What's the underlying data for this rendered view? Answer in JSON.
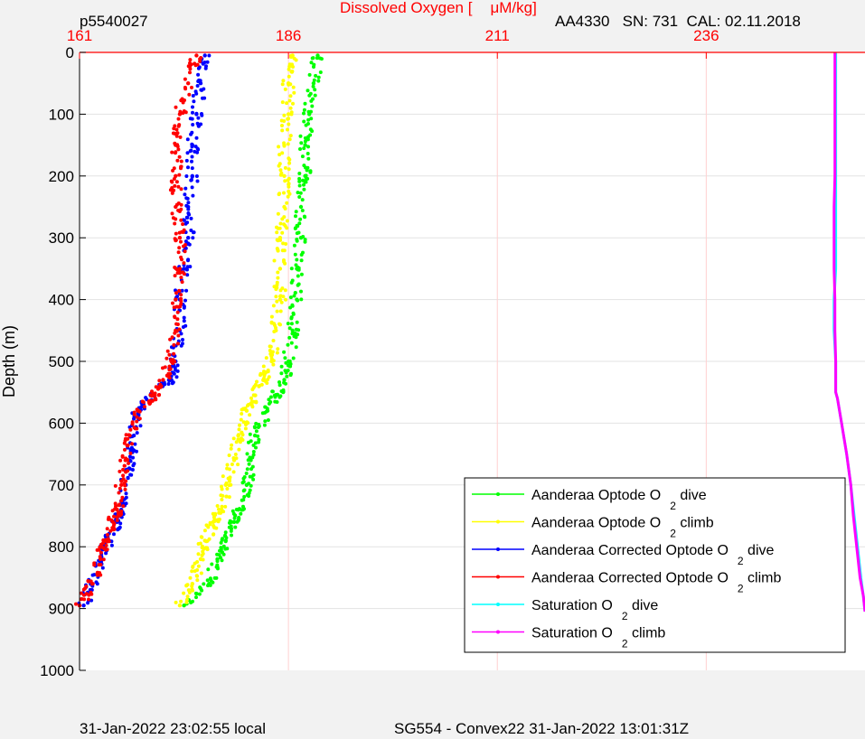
{
  "header": {
    "profile_id": "p5540027",
    "title_prefix": "Dissolved Oxygen [",
    "title_units": "μM/kg]",
    "sensor_info": "AA4330   SN: 731  CAL: 02.11.2018"
  },
  "footer": {
    "local_time": "31-Jan-2022 23:02:55 local",
    "mission": "SG554 - Convex22 31-Jan-2022 13:01:31Z"
  },
  "colors": {
    "background": "#f2f2f2",
    "plot_area": "#ffffff",
    "top_axis": "#ff0000",
    "grid": "#e3e3e3",
    "x_grid": "#ffd0d0"
  },
  "chart_data": {
    "type": "scatter",
    "title": "Dissolved Oxygen [μM/kg]",
    "ylabel": "Depth (m)",
    "xlabel": "",
    "x_axis_position": "top",
    "x_ticks": [
      161,
      186,
      211,
      236
    ],
    "xlim": [
      161,
      255
    ],
    "y_ticks": [
      0,
      100,
      200,
      300,
      400,
      500,
      600,
      700,
      800,
      900,
      1000
    ],
    "ylim": [
      0,
      1000
    ],
    "y_reversed": true,
    "grid": true,
    "legend_position": "bottom-right",
    "series": [
      {
        "name": "Aanderaa Optode O2 dive",
        "color": "#00ff00",
        "marker": "dots",
        "x": [
          189.5,
          189.0,
          188.5,
          188.0,
          188.0,
          187.5,
          187.5,
          187.0,
          187.0,
          186.5,
          186.0,
          185.5,
          184.5,
          183.5,
          182.0,
          181.5,
          181.0,
          180.0,
          179.5,
          178.5,
          177.5,
          176.5,
          173.5
        ],
        "y": [
          5,
          50,
          100,
          150,
          200,
          250,
          300,
          350,
          400,
          450,
          500,
          530,
          555,
          580,
          620,
          660,
          700,
          740,
          760,
          790,
          820,
          860,
          895
        ]
      },
      {
        "name": "Aanderaa Optode O2 climb",
        "color": "#ffff00",
        "marker": "dots",
        "x": [
          186.5,
          186.0,
          186.0,
          185.5,
          185.5,
          185.5,
          185.0,
          185.0,
          185.0,
          184.5,
          184.0,
          183.0,
          182.0,
          181.0,
          180.0,
          179.5,
          178.5,
          178.0,
          177.0,
          176.0,
          175.5,
          174.5,
          173.0
        ],
        "y": [
          5,
          50,
          100,
          150,
          200,
          250,
          300,
          350,
          400,
          450,
          500,
          530,
          555,
          580,
          620,
          660,
          700,
          740,
          760,
          790,
          820,
          860,
          895
        ]
      },
      {
        "name": "Aanderaa Corrected Optode O2 dive",
        "color": "#0000ff",
        "marker": "dots",
        "x": [
          176.0,
          175.5,
          175.0,
          174.5,
          174.5,
          174.0,
          174.0,
          173.5,
          173.0,
          173.0,
          172.5,
          172.0,
          169.5,
          168.0,
          167.5,
          167.0,
          166.5,
          166.0,
          165.5,
          164.5,
          163.5,
          162.5,
          161.5
        ],
        "y": [
          5,
          50,
          100,
          150,
          200,
          250,
          300,
          350,
          400,
          450,
          500,
          530,
          555,
          580,
          620,
          660,
          700,
          740,
          760,
          790,
          820,
          860,
          895
        ]
      },
      {
        "name": "Aanderaa Corrected Optode O2 climb",
        "color": "#ff0000",
        "marker": "dots",
        "x": [
          175.0,
          174.0,
          173.0,
          172.5,
          172.5,
          172.5,
          173.0,
          173.0,
          172.5,
          172.5,
          172.0,
          171.0,
          170.0,
          168.0,
          167.0,
          166.5,
          166.0,
          165.5,
          165.0,
          164.0,
          163.5,
          162.5,
          161.0
        ],
        "y": [
          5,
          50,
          100,
          150,
          200,
          250,
          300,
          350,
          400,
          450,
          500,
          530,
          555,
          580,
          620,
          660,
          700,
          740,
          760,
          790,
          820,
          860,
          895
        ]
      },
      {
        "name": "Saturation O2 dive",
        "color": "#00ffff",
        "marker": "line",
        "x": [
          251.5,
          251.5,
          251.5,
          251.5,
          251.5,
          251.5,
          251.3,
          251.3,
          251.5,
          251.5,
          251.5,
          251.7,
          252.2,
          252.8,
          253.3,
          253.7,
          254.1,
          254.5,
          254.8,
          255.0
        ],
        "y": [
          0,
          100,
          200,
          250,
          300,
          350,
          400,
          450,
          500,
          530,
          550,
          560,
          600,
          650,
          700,
          750,
          800,
          850,
          880,
          905
        ]
      },
      {
        "name": "Saturation O2 climb",
        "color": "#ff00ff",
        "marker": "line",
        "x": [
          251.4,
          251.4,
          251.4,
          251.3,
          251.3,
          251.3,
          251.4,
          251.4,
          251.5,
          251.5,
          251.5,
          251.7,
          252.2,
          252.8,
          253.3,
          253.6,
          254.0,
          254.4,
          254.8,
          255.0
        ],
        "y": [
          0,
          100,
          200,
          250,
          300,
          350,
          400,
          450,
          500,
          530,
          550,
          560,
          600,
          650,
          700,
          750,
          800,
          850,
          880,
          905
        ]
      }
    ],
    "legend": [
      {
        "text": "Aanderaa Optode O",
        "sub": "2",
        "tail": " dive",
        "color": "#00ff00"
      },
      {
        "text": "Aanderaa Optode O",
        "sub": "2",
        "tail": " climb",
        "color": "#ffff00"
      },
      {
        "text": "Aanderaa Corrected Optode O",
        "sub": "2",
        "tail": " dive",
        "color": "#0000ff"
      },
      {
        "text": "Aanderaa Corrected Optode O",
        "sub": "2",
        "tail": " climb",
        "color": "#ff0000"
      },
      {
        "text": "Saturation O",
        "sub": "2",
        "tail": " dive",
        "color": "#00ffff"
      },
      {
        "text": "Saturation O",
        "sub": "2",
        "tail": " climb",
        "color": "#ff00ff"
      }
    ]
  }
}
